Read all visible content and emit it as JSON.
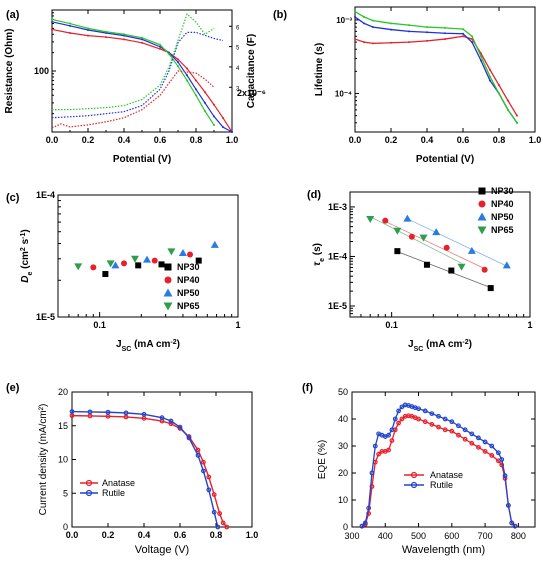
{
  "chart_data": [
    {
      "panel": "(a)",
      "type": "line",
      "xlabel": "Potential (V)",
      "ylabel": "Resistance (Ohm)",
      "y2label": "Capacitance (F)",
      "y2_exponent_label": "2x10⁻⁶",
      "xlim": [
        0.0,
        1.0
      ],
      "ylim": [
        10,
        1000
      ],
      "y2lim": [
        0.8,
        6.8
      ],
      "xticks": [
        "0.0",
        "0.2",
        "0.4",
        "0.6",
        "0.8",
        "1.0"
      ],
      "yticks_labeled": [
        "100"
      ],
      "y2ticks": [
        "3",
        "4",
        "5",
        "6"
      ],
      "series": [
        {
          "axis": "left",
          "color": "#e8202a",
          "style": "solid",
          "x": [
            0.0,
            0.1,
            0.2,
            0.3,
            0.4,
            0.5,
            0.6,
            0.65,
            0.7,
            0.75,
            0.8,
            0.85,
            0.9,
            0.95,
            1.0
          ],
          "y": [
            480,
            420,
            380,
            360,
            330,
            290,
            230,
            200,
            155,
            110,
            70,
            45,
            28,
            17,
            10
          ]
        },
        {
          "axis": "left",
          "color": "#2030d8",
          "style": "solid",
          "x": [
            0.0,
            0.1,
            0.2,
            0.3,
            0.4,
            0.5,
            0.6,
            0.65,
            0.7,
            0.75,
            0.8,
            0.85,
            0.9,
            0.95,
            1.0
          ],
          "y": [
            640,
            550,
            470,
            420,
            380,
            330,
            250,
            200,
            140,
            85,
            50,
            30,
            18,
            12,
            10
          ]
        },
        {
          "axis": "left",
          "color": "#28c828",
          "style": "solid",
          "x": [
            0.0,
            0.1,
            0.2,
            0.3,
            0.4,
            0.5,
            0.6,
            0.65,
            0.7,
            0.75,
            0.8,
            0.85,
            0.9
          ],
          "y": [
            700,
            600,
            500,
            440,
            400,
            350,
            270,
            190,
            120,
            70,
            40,
            22,
            13
          ]
        },
        {
          "axis": "right",
          "color": "#e8202a",
          "style": "dotted",
          "x": [
            0.0,
            0.05,
            0.1,
            0.2,
            0.3,
            0.4,
            0.5,
            0.6,
            0.7,
            0.8,
            0.85,
            0.9
          ],
          "y": [
            1.0,
            1.2,
            1.05,
            1.15,
            1.3,
            1.5,
            1.9,
            2.6,
            3.8,
            3.7,
            3.4,
            3.0
          ]
        },
        {
          "axis": "right",
          "color": "#2030d8",
          "style": "dotted",
          "x": [
            0.0,
            0.1,
            0.2,
            0.3,
            0.4,
            0.5,
            0.6,
            0.65,
            0.7,
            0.75,
            0.8,
            0.9,
            0.95
          ],
          "y": [
            1.5,
            1.55,
            1.6,
            1.7,
            1.8,
            2.1,
            2.9,
            3.8,
            5.2,
            5.7,
            5.7,
            5.4,
            5.3
          ]
        },
        {
          "axis": "right",
          "color": "#28c828",
          "style": "dotted",
          "x": [
            0.0,
            0.1,
            0.2,
            0.3,
            0.4,
            0.5,
            0.6,
            0.65,
            0.7,
            0.75,
            0.8,
            0.85,
            0.9
          ],
          "y": [
            1.9,
            1.9,
            1.95,
            2.0,
            2.1,
            2.4,
            3.1,
            4.0,
            5.3,
            6.6,
            6.2,
            5.6,
            5.9
          ]
        }
      ]
    },
    {
      "panel": "(b)",
      "type": "line",
      "xlabel": "Potential (V)",
      "ylabel": "Lifetime (s)",
      "xlim": [
        0.0,
        1.0
      ],
      "ylim": [
        3e-05,
        0.0015
      ],
      "yscale": "log",
      "xticks": [
        "0.0",
        "0.2",
        "0.4",
        "0.6",
        "0.8",
        "1.0"
      ],
      "yticks": [
        "10⁻³",
        "10⁻⁴"
      ],
      "series": [
        {
          "color": "#e8202a",
          "x": [
            0.0,
            0.05,
            0.1,
            0.2,
            0.3,
            0.4,
            0.5,
            0.6,
            0.65,
            0.7,
            0.75,
            0.8,
            0.85,
            0.9
          ],
          "y": [
            0.00055,
            0.0005,
            0.00048,
            0.00049,
            0.0005,
            0.00052,
            0.00055,
            0.0006,
            0.00055,
            0.00035,
            0.00021,
            0.00013,
            8e-05,
            5e-05
          ]
        },
        {
          "color": "#2030d8",
          "x": [
            0.0,
            0.05,
            0.1,
            0.2,
            0.3,
            0.4,
            0.5,
            0.6,
            0.65,
            0.7,
            0.75,
            0.8,
            0.85,
            0.9
          ],
          "y": [
            0.0011,
            0.0009,
            0.0008,
            0.00074,
            0.0007,
            0.00068,
            0.00066,
            0.00065,
            0.0005,
            0.00028,
            0.00015,
            0.0001,
            6e-05,
            4e-05
          ]
        },
        {
          "color": "#28c828",
          "x": [
            0.0,
            0.05,
            0.1,
            0.2,
            0.3,
            0.4,
            0.5,
            0.6,
            0.65,
            0.7,
            0.75,
            0.8,
            0.85,
            0.9
          ],
          "y": [
            0.0013,
            0.0011,
            0.00098,
            0.0009,
            0.00085,
            0.0008,
            0.00078,
            0.00075,
            0.0006,
            0.00032,
            0.00017,
            0.0001,
            6e-05,
            4e-05
          ]
        }
      ]
    },
    {
      "panel": "(c)",
      "type": "scatter",
      "xlabel_html": [
        "J",
        "SC",
        " (mA cm",
        "-2",
        ")"
      ],
      "ylabel_html": [
        "D",
        "e",
        " (cm",
        "2",
        " s",
        "-1",
        ")"
      ],
      "xscale": "log",
      "yscale": "log",
      "xlim": [
        0.05,
        1.0
      ],
      "ylim": [
        1e-05,
        0.0001
      ],
      "xticks": [
        "0.1",
        "1"
      ],
      "yticks": [
        "1E-5",
        "1E-4"
      ],
      "legend": "lower-right",
      "series": [
        {
          "name": "NP30",
          "marker": "square",
          "color": "#000000",
          "x": [
            0.11,
            0.19,
            0.28,
            0.52
          ],
          "y": [
            2.25e-05,
            2.65e-05,
            2.7e-05,
            2.9e-05
          ]
        },
        {
          "name": "NP40",
          "marker": "circle",
          "color": "#e8202a",
          "x": [
            0.09,
            0.15,
            0.25,
            0.45
          ],
          "y": [
            2.55e-05,
            2.75e-05,
            2.9e-05,
            3.25e-05
          ]
        },
        {
          "name": "NP50",
          "marker": "triangle-up",
          "color": "#2a7ae2",
          "x": [
            0.13,
            0.22,
            0.4,
            0.68
          ],
          "y": [
            2.65e-05,
            2.95e-05,
            3.35e-05,
            3.9e-05
          ]
        },
        {
          "name": "NP65",
          "marker": "triangle-down",
          "color": "#2e9e4e",
          "x": [
            0.07,
            0.12,
            0.18,
            0.33
          ],
          "y": [
            2.6e-05,
            2.75e-05,
            3e-05,
            3.45e-05
          ]
        }
      ]
    },
    {
      "panel": "(d)",
      "type": "scatter",
      "xlabel_html": [
        "J",
        "SC",
        " (mA cm",
        "-2",
        ")"
      ],
      "ylabel_html": [
        "τ",
        "e",
        " (s)"
      ],
      "xscale": "log",
      "yscale": "log",
      "xlim": [
        0.05,
        1.0
      ],
      "ylim": [
        6e-06,
        0.002
      ],
      "xticks": [
        "0.1",
        "1"
      ],
      "yticks": [
        "1E-5",
        "1E-4",
        "1E-3"
      ],
      "legend": "top-right",
      "series": [
        {
          "name": "NP30",
          "marker": "square",
          "color": "#000000",
          "x": [
            0.11,
            0.18,
            0.27,
            0.52
          ],
          "y": [
            0.000128,
            6.8e-05,
            5.2e-05,
            2.3e-05
          ]
        },
        {
          "name": "NP40",
          "marker": "circle",
          "color": "#e8202a",
          "x": [
            0.09,
            0.14,
            0.25,
            0.47
          ],
          "y": [
            0.00053,
            0.00025,
            0.00015,
            5.4e-05
          ]
        },
        {
          "name": "NP50",
          "marker": "triangle-up",
          "color": "#2a7ae2",
          "x": [
            0.13,
            0.21,
            0.38,
            0.68
          ],
          "y": [
            0.00058,
            0.00031,
            0.00013,
            6.6e-05
          ]
        },
        {
          "name": "NP65",
          "marker": "triangle-down",
          "color": "#2e9e4e",
          "x": [
            0.07,
            0.11,
            0.17,
            0.32
          ],
          "y": [
            0.00057,
            0.00033,
            0.00024,
            6.2e-05
          ]
        }
      ]
    },
    {
      "panel": "(e)",
      "type": "line",
      "xlabel": "Voltage (V)",
      "ylabel": "Current density (mA/cm²)",
      "xlim": [
        0.0,
        1.0
      ],
      "ylim": [
        0,
        20
      ],
      "xticks": [
        "0.0",
        "0.2",
        "0.4",
        "0.6",
        "0.8",
        "1.0"
      ],
      "yticks": [
        "0",
        "5",
        "10",
        "15",
        "20"
      ],
      "legend": "lower-left",
      "series": [
        {
          "name": "Anatase",
          "marker": "circle",
          "color": "#e8202a",
          "x": [
            0.0,
            0.1,
            0.2,
            0.3,
            0.4,
            0.5,
            0.55,
            0.6,
            0.65,
            0.7,
            0.73,
            0.76,
            0.79,
            0.82,
            0.84,
            0.86
          ],
          "y": [
            16.5,
            16.45,
            16.4,
            16.3,
            16.1,
            15.7,
            15.3,
            14.6,
            13.4,
            11.4,
            9.6,
            7.4,
            4.8,
            2.0,
            0.6,
            0
          ]
        },
        {
          "name": "Rutile",
          "marker": "circle",
          "color": "#2244cc",
          "x": [
            0.0,
            0.1,
            0.2,
            0.3,
            0.4,
            0.5,
            0.55,
            0.6,
            0.65,
            0.7,
            0.73,
            0.76,
            0.79,
            0.81
          ],
          "y": [
            17.1,
            17.05,
            17.0,
            16.9,
            16.7,
            16.2,
            15.7,
            14.8,
            13.2,
            10.6,
            8.3,
            5.5,
            2.2,
            0
          ]
        }
      ]
    },
    {
      "panel": "(f)",
      "type": "line",
      "xlabel": "Wavelength (nm)",
      "ylabel": "EQE (%)",
      "xlim": [
        300,
        850
      ],
      "ylim": [
        0,
        50
      ],
      "xticks": [
        "300",
        "400",
        "500",
        "600",
        "700",
        "800"
      ],
      "yticks": [
        "0",
        "10",
        "20",
        "30",
        "40",
        "50"
      ],
      "legend": "bottom-center",
      "series": [
        {
          "name": "Anatase",
          "marker": "circle",
          "color": "#e8202a",
          "x": [
            330,
            340,
            350,
            360,
            370,
            380,
            390,
            400,
            410,
            420,
            430,
            440,
            450,
            460,
            470,
            480,
            490,
            500,
            520,
            540,
            560,
            580,
            600,
            620,
            640,
            660,
            680,
            700,
            720,
            740,
            750,
            760,
            770,
            780,
            790
          ],
          "y": [
            0.3,
            1,
            5,
            15,
            24,
            27,
            28,
            28,
            28.5,
            32,
            36,
            38.5,
            40,
            41,
            41.2,
            41,
            40.5,
            40,
            39,
            38,
            37,
            36,
            35.5,
            34,
            32.5,
            31,
            29.5,
            28,
            26.5,
            24.5,
            23,
            18,
            8,
            1.5,
            0.3
          ]
        },
        {
          "name": "Rutile",
          "marker": "circle",
          "color": "#2244cc",
          "x": [
            330,
            340,
            350,
            360,
            370,
            380,
            390,
            400,
            410,
            420,
            430,
            440,
            450,
            460,
            470,
            480,
            490,
            500,
            520,
            540,
            560,
            580,
            600,
            620,
            640,
            660,
            680,
            700,
            720,
            740,
            750,
            760,
            770,
            780,
            790
          ],
          "y": [
            0.3,
            1.5,
            7,
            20,
            30,
            34.5,
            34,
            33.5,
            34,
            36,
            40,
            43,
            44.5,
            45.2,
            45,
            44.6,
            44.2,
            43.8,
            43,
            42,
            41,
            40,
            39,
            37.5,
            36,
            34.5,
            33,
            31.5,
            30,
            27.5,
            25,
            19,
            8,
            1.5,
            0.3
          ]
        }
      ]
    }
  ]
}
